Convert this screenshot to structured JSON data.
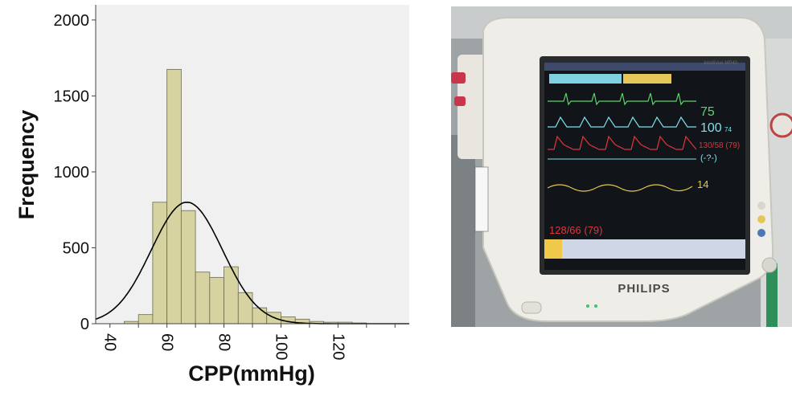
{
  "chart_data": {
    "type": "histogram",
    "xlabel": "CPP(mmHg)",
    "ylabel": "Frequency",
    "xlim": [
      35,
      145
    ],
    "ylim": [
      0,
      2100
    ],
    "x_ticks": [
      "40",
      "60",
      "80",
      "100",
      "120"
    ],
    "x_tick_values": [
      40,
      60,
      80,
      100,
      120
    ],
    "y_ticks": [
      "0",
      "500",
      "1000",
      "1500",
      "2000"
    ],
    "y_tick_values": [
      0,
      500,
      1000,
      1500,
      2000
    ],
    "bin_width": 5,
    "bins": [
      {
        "start": 45,
        "count": 15
      },
      {
        "start": 50,
        "count": 60
      },
      {
        "start": 55,
        "count": 800
      },
      {
        "start": 60,
        "count": 1675
      },
      {
        "start": 65,
        "count": 745
      },
      {
        "start": 70,
        "count": 340
      },
      {
        "start": 75,
        "count": 305
      },
      {
        "start": 80,
        "count": 375
      },
      {
        "start": 85,
        "count": 205
      },
      {
        "start": 90,
        "count": 105
      },
      {
        "start": 95,
        "count": 75
      },
      {
        "start": 100,
        "count": 45
      },
      {
        "start": 105,
        "count": 30
      },
      {
        "start": 110,
        "count": 15
      },
      {
        "start": 115,
        "count": 10
      },
      {
        "start": 120,
        "count": 10
      },
      {
        "start": 125,
        "count": 5
      }
    ],
    "normal_curve": {
      "mean": 67,
      "sd": 12.5,
      "peak": 800
    },
    "colors": {
      "bar_fill": "#d6d3a1",
      "bar_stroke": "#6b6a52",
      "plot_bg": "#f0f0f0",
      "curve": "#000000"
    }
  },
  "monitor": {
    "brand": "PHILIPS",
    "model": "IntelliVue MP40",
    "hr": "75",
    "spo2": "100",
    "spo2_side": "74",
    "abp": "130/58 (79)",
    "cvp": "(-?-)",
    "resp": "14",
    "nbp": "128/66 (79)"
  }
}
